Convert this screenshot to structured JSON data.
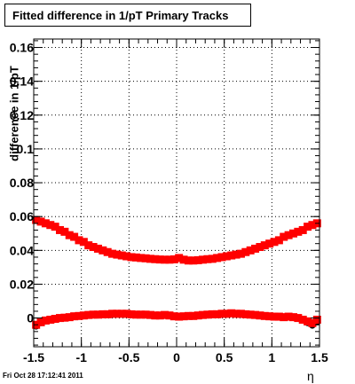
{
  "chart_data": {
    "type": "scatter",
    "title": "Fitted difference in 1/pT  Primary Tracks",
    "ylabel": "difference in 1/pT",
    "xlabel": "η",
    "xlim": [
      -1.5,
      1.5
    ],
    "ylim": [
      -0.017,
      0.165
    ],
    "grid": true,
    "x_ticks": [
      -1.5,
      -1,
      -0.5,
      0,
      0.5,
      1,
      1.5
    ],
    "x_tick_labels": [
      "-1.5",
      "-1",
      "-0.5",
      "0",
      "0.5",
      "1",
      "1.5"
    ],
    "y_ticks": [
      0,
      0.02,
      0.04,
      0.06,
      0.08,
      0.1,
      0.12,
      0.14,
      0.16
    ],
    "y_tick_labels": [
      "0",
      "0.02",
      "0.04",
      "0.06",
      "0.08",
      "0.1",
      "0.12",
      "0.14",
      "0.16"
    ],
    "series": [
      {
        "color": "#ff0000",
        "marker": "square",
        "x": [
          -1.475,
          -1.425,
          -1.375,
          -1.325,
          -1.275,
          -1.225,
          -1.175,
          -1.125,
          -1.075,
          -1.025,
          -0.975,
          -0.925,
          -0.875,
          -0.825,
          -0.775,
          -0.725,
          -0.675,
          -0.625,
          -0.575,
          -0.525,
          -0.475,
          -0.425,
          -0.375,
          -0.325,
          -0.275,
          -0.225,
          -0.175,
          -0.125,
          -0.075,
          -0.025,
          0.025,
          0.075,
          0.125,
          0.175,
          0.225,
          0.275,
          0.325,
          0.375,
          0.425,
          0.475,
          0.525,
          0.575,
          0.625,
          0.675,
          0.725,
          0.775,
          0.825,
          0.875,
          0.925,
          0.975,
          1.025,
          1.075,
          1.125,
          1.175,
          1.225,
          1.275,
          1.325,
          1.375,
          1.425,
          1.475
        ],
        "y": [
          0.058,
          0.057,
          0.056,
          0.055,
          0.054,
          0.052,
          0.051,
          0.049,
          0.048,
          0.046,
          0.045,
          0.043,
          0.042,
          0.041,
          0.04,
          0.039,
          0.038,
          0.0375,
          0.037,
          0.0365,
          0.036,
          0.0358,
          0.0355,
          0.0353,
          0.035,
          0.0348,
          0.0346,
          0.0345,
          0.0345,
          0.0347,
          0.0355,
          0.0345,
          0.034,
          0.034,
          0.0342,
          0.0345,
          0.0348,
          0.035,
          0.0355,
          0.036,
          0.0365,
          0.037,
          0.0375,
          0.038,
          0.039,
          0.04,
          0.041,
          0.042,
          0.043,
          0.044,
          0.045,
          0.046,
          0.048,
          0.049,
          0.05,
          0.051,
          0.052,
          0.054,
          0.055,
          0.056
        ]
      },
      {
        "color": "#ff0000",
        "marker": "square",
        "x": [
          -1.475,
          -1.425,
          -1.375,
          -1.325,
          -1.275,
          -1.225,
          -1.175,
          -1.125,
          -1.075,
          -1.025,
          -0.975,
          -0.925,
          -0.875,
          -0.825,
          -0.775,
          -0.725,
          -0.675,
          -0.625,
          -0.575,
          -0.525,
          -0.475,
          -0.425,
          -0.375,
          -0.325,
          -0.275,
          -0.225,
          -0.175,
          -0.125,
          -0.075,
          -0.025,
          0.025,
          0.075,
          0.125,
          0.175,
          0.225,
          0.275,
          0.325,
          0.375,
          0.425,
          0.475,
          0.525,
          0.575,
          0.625,
          0.675,
          0.725,
          0.775,
          0.825,
          0.875,
          0.925,
          0.975,
          1.025,
          1.075,
          1.125,
          1.175,
          1.225,
          1.275,
          1.325,
          1.375,
          1.425,
          1.475
        ],
        "y": [
          -0.004,
          -0.0025,
          -0.0015,
          -0.001,
          -0.0005,
          0.0,
          0.0002,
          0.0005,
          0.001,
          0.0012,
          0.0015,
          0.0018,
          0.002,
          0.002,
          0.0022,
          0.0022,
          0.0025,
          0.0025,
          0.0025,
          0.0025,
          0.0022,
          0.002,
          0.002,
          0.002,
          0.0018,
          0.0015,
          0.0015,
          0.0018,
          0.0015,
          0.001,
          0.0008,
          0.001,
          0.0012,
          0.0012,
          0.0015,
          0.0018,
          0.002,
          0.0022,
          0.0022,
          0.0025,
          0.0025,
          0.0028,
          0.0025,
          0.0025,
          0.0022,
          0.002,
          0.0018,
          0.0015,
          0.0012,
          0.001,
          0.0008,
          0.0008,
          0.0005,
          0.0008,
          0.0005,
          0.0,
          -0.001,
          -0.002,
          -0.003,
          -0.001
        ]
      },
      {
        "color": "#000000",
        "marker": "circle",
        "x": [
          -1.475,
          -1.425,
          -1.375,
          -1.325,
          -1.275,
          -1.225,
          -1.175,
          -1.125,
          -1.075,
          -1.025,
          -0.975,
          -0.925,
          -0.875,
          -0.825,
          -0.775,
          -0.725,
          -0.675,
          -0.625,
          -0.575,
          -0.525,
          -0.475,
          -0.425,
          -0.375,
          -0.325,
          -0.275,
          -0.225,
          -0.175,
          -0.125,
          -0.075,
          -0.025,
          0.025,
          0.075,
          0.125,
          0.175,
          0.225,
          0.275,
          0.325,
          0.375,
          0.425,
          0.475,
          0.525,
          0.575,
          0.625,
          0.675,
          0.725,
          0.775,
          0.825,
          0.875,
          0.925,
          0.975,
          1.025,
          1.075,
          1.125,
          1.175,
          1.225,
          1.275,
          1.325,
          1.375,
          1.425,
          1.475
        ],
        "y": [
          -0.005,
          -0.003,
          -0.002,
          -0.001,
          -0.0005,
          0.0,
          0.0003,
          0.0006,
          0.001,
          0.0013,
          0.0016,
          0.0019,
          0.0021,
          0.0022,
          0.0023,
          0.0024,
          0.0026,
          0.0026,
          0.0027,
          0.0026,
          0.0024,
          0.0022,
          0.0021,
          0.002,
          0.0019,
          0.0016,
          0.0015,
          0.0017,
          0.0014,
          0.0009,
          0.0007,
          0.0009,
          0.0011,
          0.0012,
          0.0015,
          0.0018,
          0.0021,
          0.0023,
          0.0024,
          0.0026,
          0.0027,
          0.0029,
          0.0027,
          0.0026,
          0.0024,
          0.0022,
          0.0019,
          0.0016,
          0.0013,
          0.001,
          0.0008,
          0.0007,
          0.0005,
          0.0006,
          0.0003,
          -0.0003,
          -0.0015,
          -0.003,
          -0.0045,
          -0.0025
        ]
      }
    ]
  },
  "footer": {
    "timestamp": "Fri Oct 28 17:12:41 2011"
  }
}
